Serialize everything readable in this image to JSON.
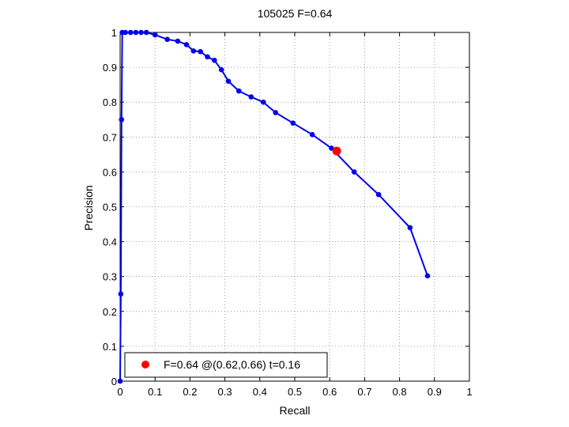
{
  "chart_data": {
    "type": "line",
    "title": "105025 F=0.64",
    "xlabel": "Recall",
    "ylabel": "Precision",
    "xlim": [
      0,
      1
    ],
    "ylim": [
      0,
      1
    ],
    "grid": true,
    "xticks": [
      0,
      0.1,
      0.2,
      0.3,
      0.4,
      0.5,
      0.6,
      0.7,
      0.8,
      0.9,
      1
    ],
    "yticks": [
      0,
      0.1,
      0.2,
      0.3,
      0.4,
      0.5,
      0.6,
      0.7,
      0.8,
      0.9,
      1
    ],
    "series": [
      {
        "color": "#0000ee",
        "x": [
          0,
          0.002,
          0.004,
          0.006,
          0.015,
          0.03,
          0.045,
          0.06,
          0.075,
          0.1,
          0.135,
          0.165,
          0.19,
          0.21,
          0.23,
          0.25,
          0.27,
          0.29,
          0.31,
          0.34,
          0.375,
          0.41,
          0.445,
          0.495,
          0.55,
          0.605,
          0.67,
          0.74,
          0.83,
          0.88
        ],
        "y": [
          0,
          0.25,
          0.75,
          1.0,
          1.0,
          1.0,
          1.0,
          1.0,
          1.0,
          0.993,
          0.98,
          0.975,
          0.965,
          0.947,
          0.945,
          0.93,
          0.92,
          0.893,
          0.86,
          0.832,
          0.815,
          0.8,
          0.77,
          0.74,
          0.707,
          0.668,
          0.6,
          0.535,
          0.44,
          0.302
        ]
      }
    ],
    "best_point": {
      "x": 0.62,
      "y": 0.66,
      "color": "#ff0000"
    },
    "legend": {
      "label": "F=0.64 @(0.62,0.66) t=0.16",
      "position": "bottom-left"
    }
  }
}
